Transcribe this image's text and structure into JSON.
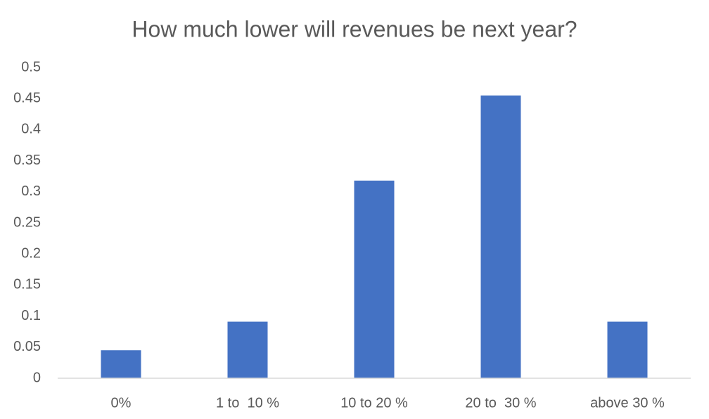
{
  "chart_data": {
    "type": "bar",
    "title": "How much lower will revenues be next year?",
    "categories": [
      "0%",
      "1 to  10 %",
      "10 to 20 %",
      "20 to  30 %",
      "above 30 %"
    ],
    "values": [
      0.045,
      0.091,
      0.318,
      0.455,
      0.091
    ],
    "color": "#4472c4",
    "ylim": [
      0,
      0.5
    ],
    "yticks": [
      0,
      0.05,
      0.1,
      0.15,
      0.2,
      0.25,
      0.3,
      0.35,
      0.4,
      0.45,
      0.5
    ],
    "grid": false
  }
}
